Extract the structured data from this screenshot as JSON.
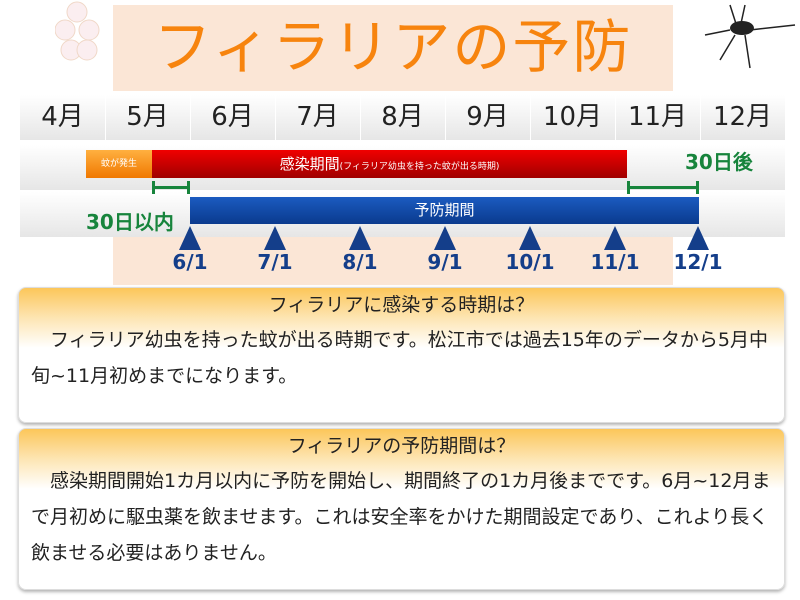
{
  "title": "フィラリアの予防",
  "months": [
    "4月",
    "5月",
    "6月",
    "7月",
    "8月",
    "9月",
    "10月",
    "11月",
    "12月"
  ],
  "timeline": {
    "mosquito_label": "蚊が発生",
    "infection_label": "感染期間",
    "infection_note": "(フィラリア幼虫を持った蚊が出る時期)",
    "after_label": "30日後",
    "within_label": "30日以内",
    "prevention_label": "予防期間",
    "dates": [
      "6/1",
      "7/1",
      "8/1",
      "9/1",
      "10/1",
      "11/1",
      "12/1"
    ],
    "colors": {
      "infection": "#d00000",
      "mosquito": "#f79a1e",
      "prevention": "#0d47a1",
      "bracket": "#17843c"
    }
  },
  "sections": [
    {
      "heading": "フィラリアに感染する時期は？",
      "body": "　フィラリア幼虫を持った蚊が出る時期です。松江市では過去15年のデータから5月中旬~11月初めまでになります。"
    },
    {
      "heading": "フィラリアの予防期間は？",
      "body": "　感染期間開始1カ月以内に予防を開始し、期間終了の1カ月後までです。6月~12月まで月初めに駆虫薬を飲ませます。これは安全率をかけた期間設定であり、これより長く飲ませる必要はありません。"
    }
  ]
}
